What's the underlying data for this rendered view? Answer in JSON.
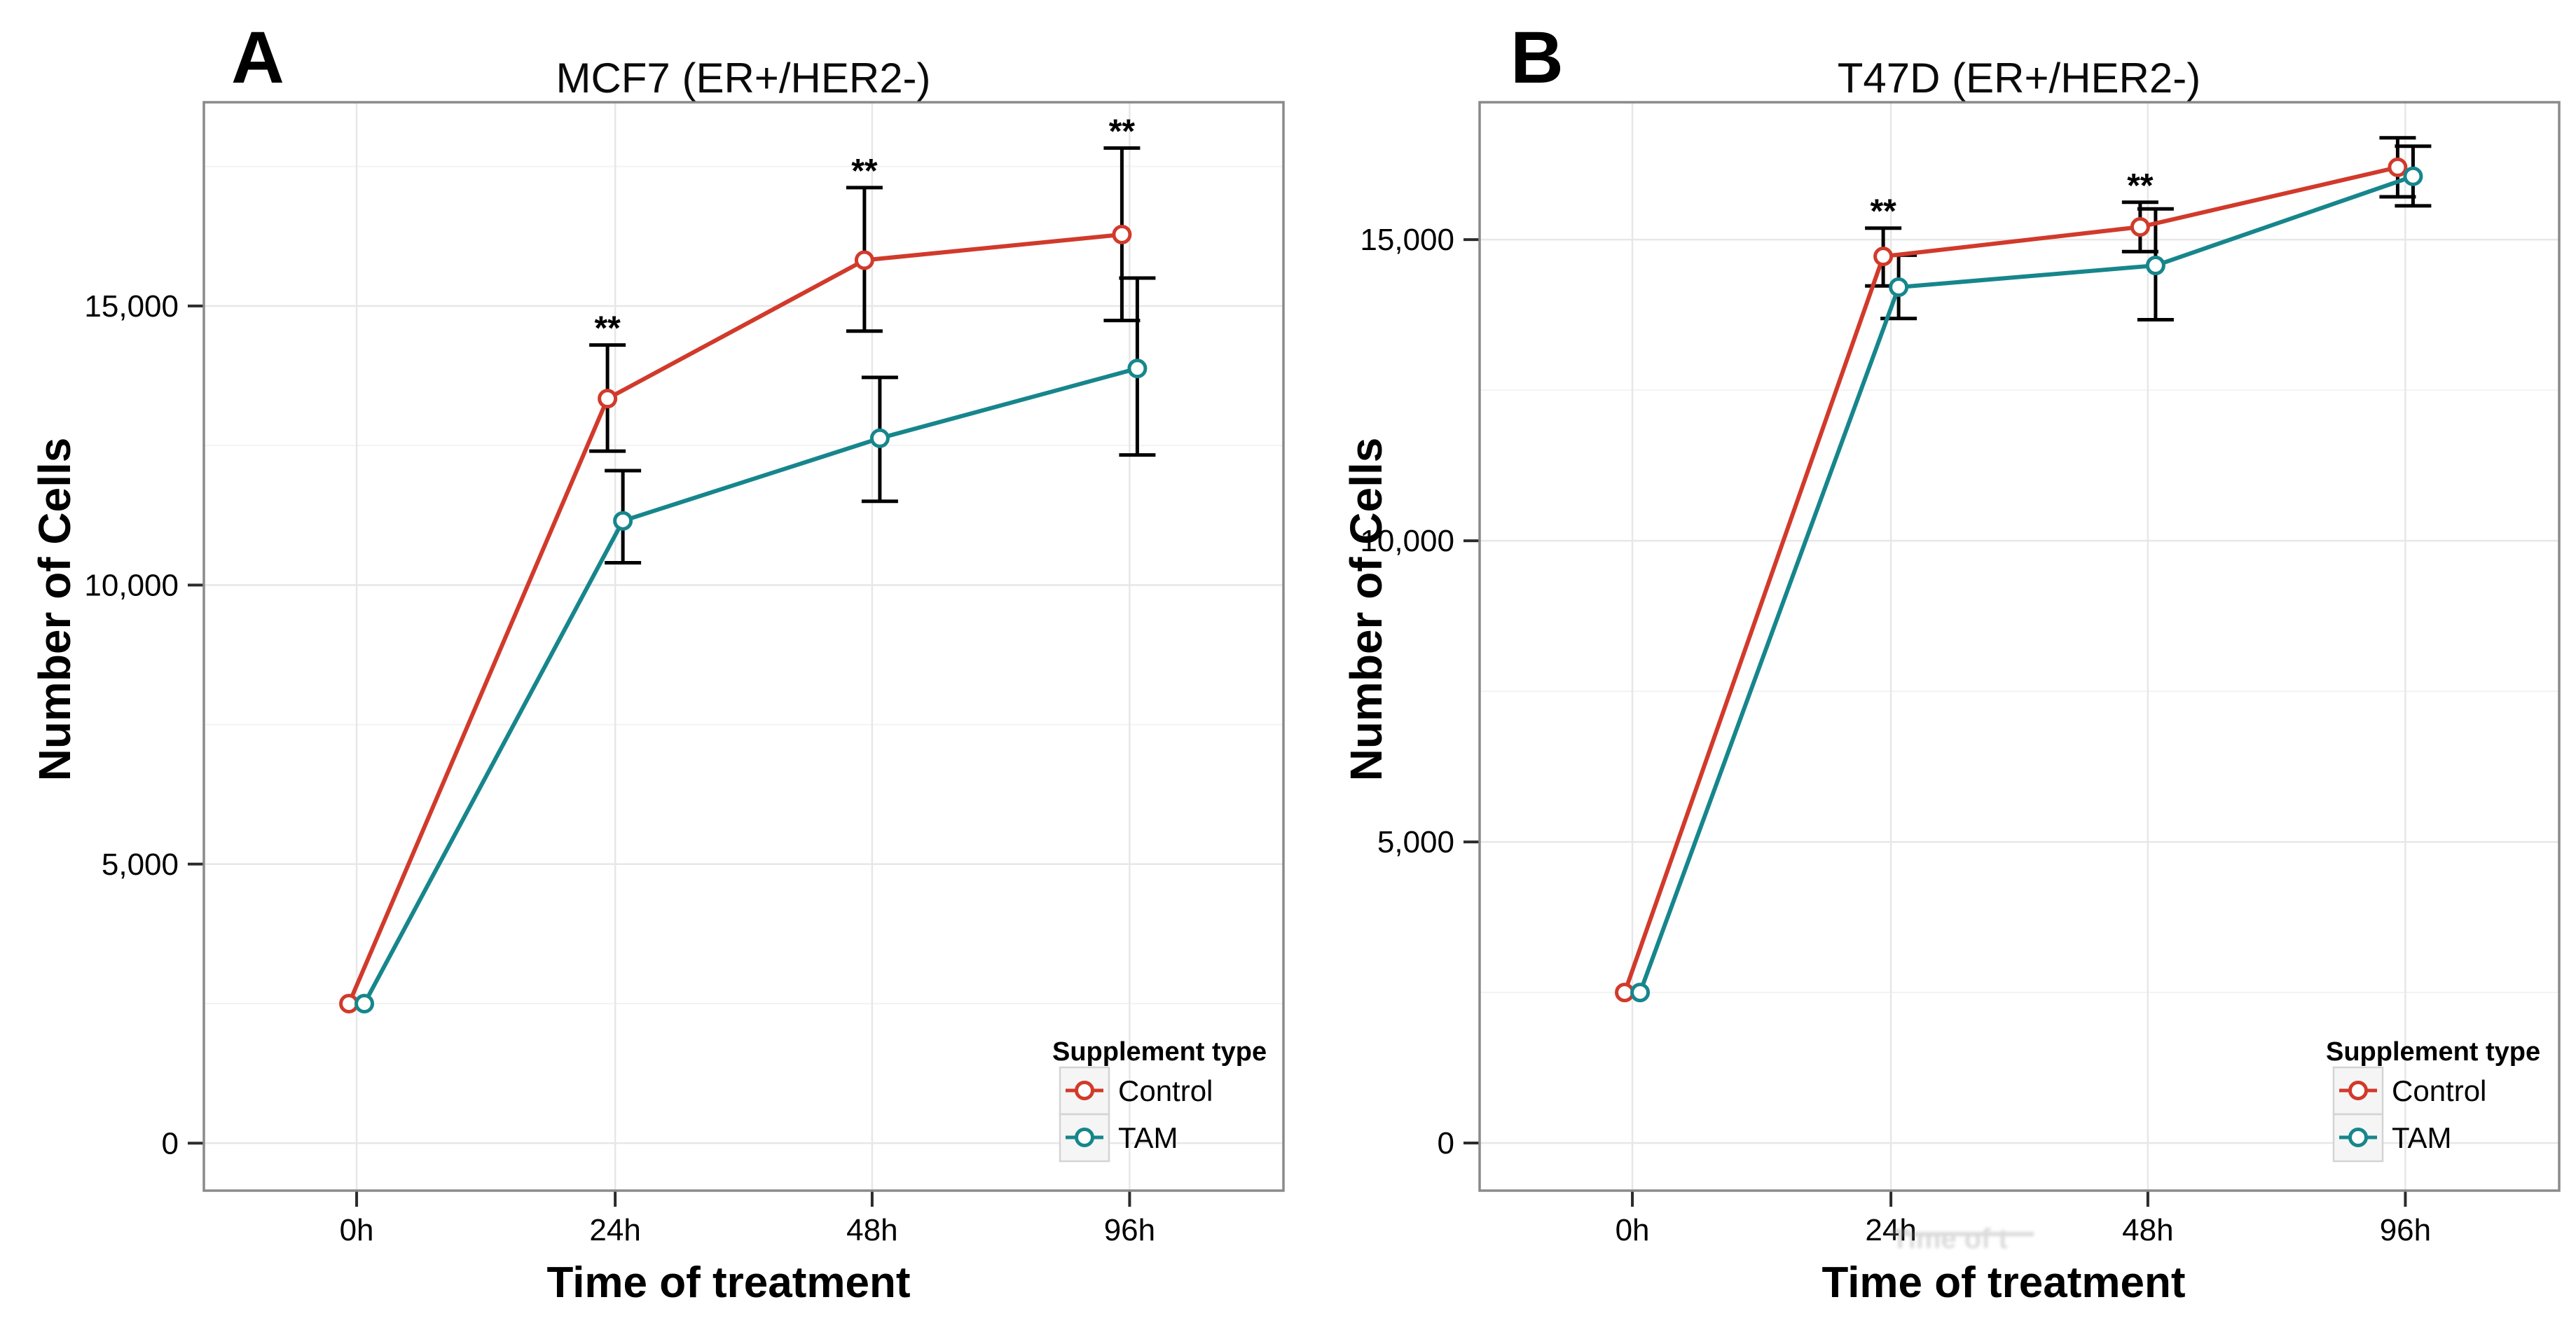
{
  "figure": {
    "panels": [
      {
        "letter": "A"
      },
      {
        "letter": "B"
      }
    ]
  },
  "colors": {
    "control": "#D13A2B",
    "tam": "#16868C",
    "error_bar": "#000000",
    "grid_major": "#e7e7e7",
    "grid_minor": "#f3f3f3",
    "panel_border": "#8a8a8a",
    "tick": "#2b2b2b"
  },
  "artifact": {
    "ghost_label": "Time of t"
  },
  "chart_data": [
    {
      "type": "line",
      "panel": "A",
      "title": "MCF7 (ER+/HER2-)",
      "xlabel": "Time of treatment",
      "ylabel": "Number of Cells",
      "categories": [
        "0h",
        "24h",
        "48h",
        "96h"
      ],
      "ytick_values": [
        0,
        5000,
        10000,
        15000
      ],
      "ytick_labels": [
        "0",
        "5,000",
        "10,000",
        "15,000"
      ],
      "ylim": [
        -850,
        18650
      ],
      "grid": "major+minor horizontal, major vertical",
      "legend_title": "Supplement type",
      "legend_position": "bottom-right-inside",
      "series": [
        {
          "name": "Control",
          "color": "#D13A2B",
          "values": [
            2500,
            13340,
            15820,
            16280
          ],
          "err_low": [
            null,
            12400,
            14550,
            14740
          ],
          "err_high": [
            null,
            14300,
            17120,
            17830
          ]
        },
        {
          "name": "TAM",
          "color": "#16868C",
          "values": [
            2500,
            11150,
            12630,
            13880
          ],
          "err_low": [
            null,
            10400,
            11500,
            12330
          ],
          "err_high": [
            null,
            12050,
            13720,
            15500
          ]
        }
      ],
      "significance": [
        {
          "category": "24h",
          "label": "**"
        },
        {
          "category": "48h",
          "label": "**"
        },
        {
          "category": "96h",
          "label": "**"
        }
      ]
    },
    {
      "type": "line",
      "panel": "B",
      "title": "T47D (ER+/HER2-)",
      "xlabel": "Time of treatment",
      "ylabel": "Number of Cells",
      "categories": [
        "0h",
        "24h",
        "48h",
        "96h"
      ],
      "ytick_values": [
        0,
        5000,
        10000,
        15000
      ],
      "ytick_labels": [
        "0",
        "5,000",
        "10,000",
        "15,000"
      ],
      "ylim": [
        -790,
        17280
      ],
      "grid": "major+minor horizontal, major vertical",
      "legend_title": "Supplement type",
      "legend_position": "bottom-right-inside",
      "series": [
        {
          "name": "Control",
          "color": "#D13A2B",
          "values": [
            2500,
            14720,
            15210,
            16200
          ],
          "err_low": [
            null,
            14230,
            14800,
            15710
          ],
          "err_high": [
            null,
            15190,
            15620,
            16690
          ]
        },
        {
          "name": "TAM",
          "color": "#16868C",
          "values": [
            2500,
            14210,
            14570,
            16050
          ],
          "err_low": [
            null,
            13690,
            13670,
            15560
          ],
          "err_high": [
            null,
            14740,
            15510,
            16550
          ]
        }
      ],
      "significance": [
        {
          "category": "24h",
          "label": "**"
        },
        {
          "category": "48h",
          "label": "**"
        }
      ]
    }
  ]
}
